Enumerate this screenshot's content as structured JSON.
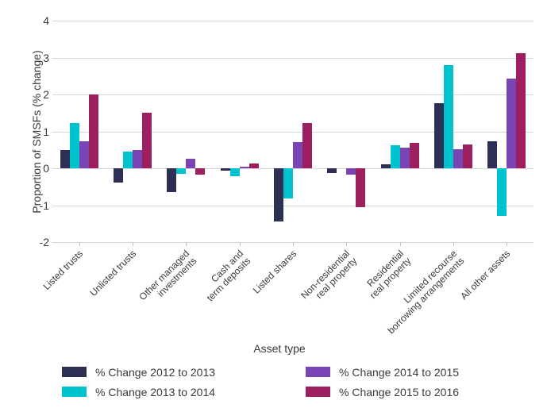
{
  "chart_data": {
    "type": "bar",
    "title": "",
    "xlabel": "Asset type",
    "ylabel": "Proportion of SMSFs (% change)",
    "ylim": [
      -2,
      4
    ],
    "yticks": [
      4,
      3,
      2,
      1,
      0,
      -1,
      -2
    ],
    "grid": "horizontal-only",
    "legend_position": "bottom, two columns",
    "gridline_color": "#d7d7d7",
    "text_color": "#3a3a3a",
    "categories": [
      "Listed trusts",
      "Unlisted trusts",
      "Other managed\ninvestments",
      "Cash and\nterm deposits",
      "Listed shares",
      "Non-residential\nreal property",
      "Residential\nreal property",
      "Limited recourse\nborrowing arrangements",
      "All other assets"
    ],
    "series": [
      {
        "name": "% Change 2012 to 2013",
        "color": "#2D3054",
        "values": [
          0.5,
          -0.38,
          -0.65,
          -0.06,
          -1.43,
          -0.13,
          0.1,
          1.76,
          0.73
        ]
      },
      {
        "name": "% Change 2013 to 2014",
        "color": "#00C3CD",
        "values": [
          1.23,
          0.46,
          -0.15,
          -0.21,
          -0.82,
          0.0,
          0.62,
          2.79,
          -1.28
        ]
      },
      {
        "name": "% Change 2014 to 2015",
        "color": "#7A44B5",
        "values": [
          0.73,
          0.5,
          0.25,
          0.04,
          0.7,
          -0.18,
          0.57,
          0.51,
          2.44
        ]
      },
      {
        "name": "% Change 2015 to 2016",
        "color": "#9C1F5F",
        "values": [
          2.0,
          1.5,
          -0.17,
          0.12,
          1.23,
          -1.06,
          0.69,
          0.64,
          3.12
        ]
      }
    ]
  }
}
